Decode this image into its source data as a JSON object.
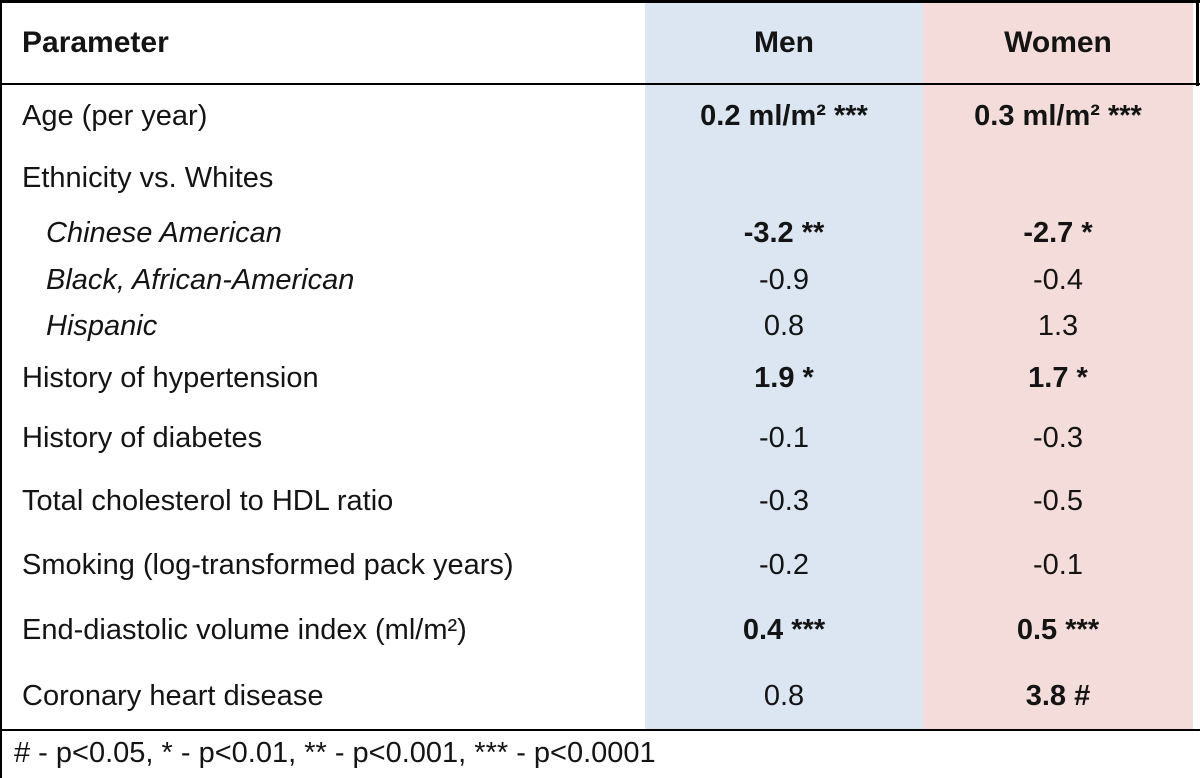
{
  "table": {
    "columns": {
      "parameter": "Parameter",
      "men": "Men",
      "women": "Women"
    },
    "rows": [
      {
        "label": "Age (per year)",
        "men": "0.2 ml/m² ***",
        "women": "0.3 ml/m² ***"
      },
      {
        "label": "Ethnicity vs. Whites",
        "men": "",
        "women": ""
      },
      {
        "label": "Chinese American",
        "men": "-3.2 **",
        "women": "-2.7 *"
      },
      {
        "label": "Black, African-American",
        "men": "-0.9",
        "women": "-0.4"
      },
      {
        "label": "Hispanic",
        "men": "0.8",
        "women": "1.3"
      },
      {
        "label": "History of hypertension",
        "men": "1.9 *",
        "women": "1.7 *"
      },
      {
        "label": "History of diabetes",
        "men": "-0.1",
        "women": "-0.3"
      },
      {
        "label": "Total cholesterol to HDL ratio",
        "men": "-0.3",
        "women": "-0.5"
      },
      {
        "label": "Smoking (log-transformed pack years)",
        "men": "-0.2",
        "women": "-0.1"
      },
      {
        "label": "End-diastolic volume index (ml/m²)",
        "men": "0.4 ***",
        "women": "0.5 ***"
      },
      {
        "label": "Coronary heart disease",
        "men": "0.8",
        "women": "3.8 #"
      }
    ],
    "footnote": "# - p<0.05, * - p<0.01, ** - p<0.001, *** - p<0.0001"
  },
  "colors": {
    "men_column": "#dbe6f2",
    "women_column": "#f3dcda",
    "border": "#000000"
  }
}
